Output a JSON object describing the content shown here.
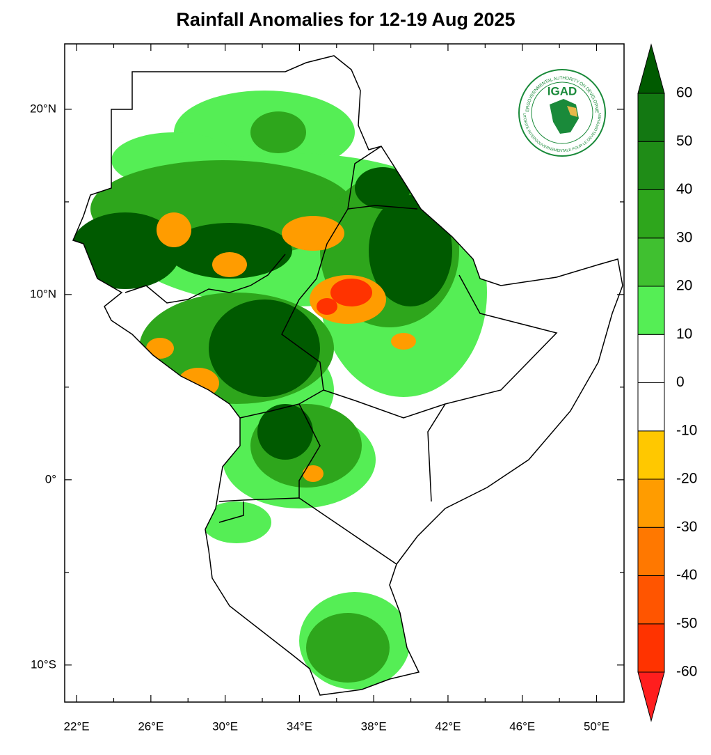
{
  "title": "Rainfall Anomalies for 12-19 Aug 2025",
  "map": {
    "lonlim": [
      21.36,
      51.48
    ],
    "latlim": [
      -12.0,
      23.53
    ],
    "lon_ticks": [
      {
        "value": 22,
        "label": "22°E"
      },
      {
        "value": 26,
        "label": "26°E"
      },
      {
        "value": 30,
        "label": "30°E"
      },
      {
        "value": 34,
        "label": "34°E"
      },
      {
        "value": 38,
        "label": "38°E"
      },
      {
        "value": 42,
        "label": "42°E"
      },
      {
        "value": 46,
        "label": "46°E"
      },
      {
        "value": 50,
        "label": "50°E"
      }
    ],
    "lon_minor_ticks": [
      24,
      28,
      32,
      36,
      40,
      44,
      48
    ],
    "lat_ticks": [
      {
        "value": 20,
        "label": "20°N"
      },
      {
        "value": 10,
        "label": "10°N"
      },
      {
        "value": 0,
        "label": "0°"
      },
      {
        "value": -10,
        "label": "10°S"
      }
    ],
    "lat_minor_ticks": [
      15,
      5,
      -5
    ]
  },
  "colorbar": {
    "levels": [
      -60,
      -50,
      -40,
      -30,
      -20,
      -10,
      0,
      10,
      20,
      30,
      40,
      50,
      60
    ],
    "colors": [
      "#ff1e1e",
      "#ff3300",
      "#ff5500",
      "#ff7800",
      "#ff9c00",
      "#ffc800",
      "#ffffff",
      "#ffffff",
      "#55ee55",
      "#40c030",
      "#2ea61c",
      "#1f8c17",
      "#137812",
      "#005a00"
    ]
  },
  "logo": {
    "name": "IGAD",
    "ring_top": "INTERGOVERNMENTAL AUTHORITY ON DEVELOPMENT",
    "ring_bottom": "AUTORITE INTERGOUVERNEMENTALE POUR LE DEVELOPPEMENT"
  }
}
